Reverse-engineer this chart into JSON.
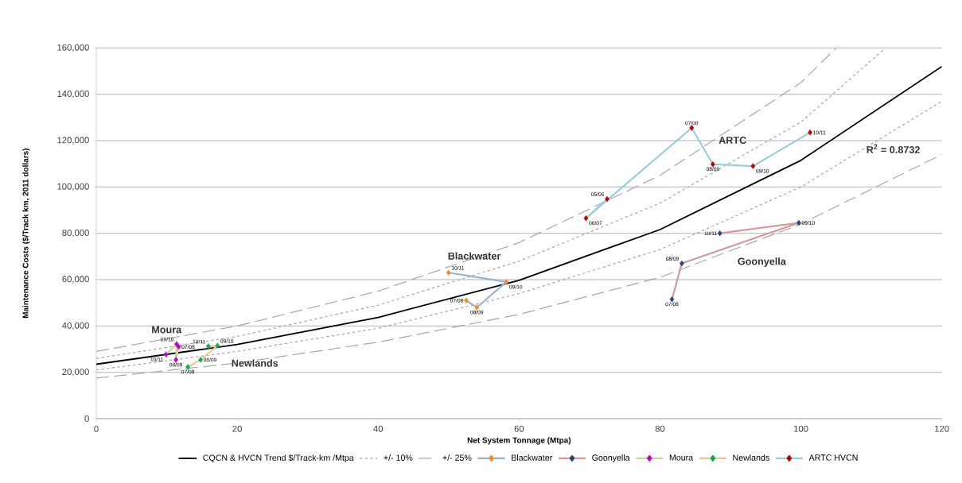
{
  "chart_data": {
    "type": "line",
    "xlabel": "Net System Tonnage (Mtpa)",
    "ylabel": "Maintenance Costs ($/Track km, 2011 dollars)",
    "xlim": [
      0,
      120
    ],
    "ylim": [
      0,
      160000
    ],
    "xticks": [
      0,
      20,
      40,
      60,
      80,
      100,
      120
    ],
    "yticks": [
      0,
      {
        "value": 20000,
        "label": "20,000"
      },
      {
        "value": 40000,
        "label": "40,000"
      },
      {
        "value": 60000,
        "label": "60,000"
      },
      {
        "value": 80000,
        "label": "80,000"
      },
      {
        "value": 100000,
        "label": "100,000"
      },
      {
        "value": 120000,
        "label": "120,000"
      },
      {
        "value": 140000,
        "label": "140,000"
      },
      {
        "value": 160000,
        "label": "160,000"
      }
    ],
    "grid": "y",
    "legend": "bottom",
    "series": [
      {
        "name": "CQCN & HVCN Trend $/Track-km /Mtpa",
        "color": "#000000",
        "line_style": "solid",
        "marker": "none",
        "x": [
          0,
          20,
          40,
          60,
          80,
          100,
          120
        ],
        "values": [
          23500,
          32000,
          43700,
          59700,
          81600,
          111500,
          152000
        ]
      },
      {
        "name": "+/- 10%",
        "color": "#a6a6a6",
        "line_style": "dotted",
        "marker": "none",
        "x": [
          0,
          20,
          40,
          60,
          80,
          100,
          112
        ],
        "values": [
          26000,
          35500,
          49000,
          68000,
          93000,
          128000,
          160000
        ]
      },
      {
        "color": "#a6a6a6",
        "line_style": "dotted",
        "marker": "none",
        "x": [
          0,
          20,
          40,
          60,
          80,
          100,
          120
        ],
        "values": [
          21000,
          29000,
          39000,
          54000,
          73000,
          100000,
          137000
        ]
      },
      {
        "name": "+/- 25%",
        "color": "#a6a6a6",
        "line_style": "dashed",
        "marker": "none",
        "x": [
          0,
          20,
          40,
          60,
          80,
          100,
          105
        ],
        "values": [
          29000,
          40000,
          55000,
          76000,
          105000,
          145000,
          160000
        ]
      },
      {
        "color": "#a6a6a6",
        "line_style": "dashed",
        "marker": "none",
        "x": [
          0,
          20,
          40,
          60,
          80,
          100,
          120
        ],
        "values": [
          17500,
          24000,
          33000,
          45000,
          61000,
          84000,
          114000
        ]
      },
      {
        "name": "Blackwater",
        "color": "#95b3d7",
        "colors": [
          "#f68b1f",
          "#f68b1f",
          "#f68b1f",
          "#f68b1f"
        ],
        "line_style": "solid",
        "marker": "diamond",
        "x": [
          52.5,
          54,
          58.2,
          50
        ],
        "values": [
          51000,
          48000,
          59000,
          63000
        ]
      },
      {
        "name": "Goonyella",
        "color": "#d99694",
        "colors": [
          "#1f497d",
          "#1f497d",
          "#1f497d",
          "#1f497d"
        ],
        "line_style": "solid",
        "marker": "diamond",
        "x": [
          81.7,
          83.1,
          99.7,
          88.5
        ],
        "values": [
          51500,
          67000,
          84500,
          80000
        ]
      },
      {
        "name": "Moura",
        "color": "#c3d69b",
        "colors": [
          "#cc00cc",
          "#cc00cc",
          "#cc00cc",
          "#cc00cc"
        ],
        "line_style": "solid",
        "marker": "diamond",
        "x": [
          11.7,
          11.3,
          11.4,
          9.9
        ],
        "values": [
          31000,
          25400,
          32200,
          27700
        ]
      },
      {
        "name": "Newlands",
        "color": "#fac090",
        "colors": [
          "#00b050",
          "#00b050",
          "#00b050",
          "#00b050"
        ],
        "line_style": "solid",
        "marker": "diamond",
        "x": [
          13.0,
          14.8,
          17.2,
          15.9
        ],
        "values": [
          22300,
          25400,
          31500,
          31200
        ]
      },
      {
        "name": "ARTC HVCN",
        "color": "#93cddd",
        "colors": [
          "#c00000",
          "#c00000",
          "#c00000",
          "#c00000",
          "#c00000",
          "#c00000"
        ],
        "line_style": "solid",
        "marker": "diamond",
        "x": [
          72.5,
          69.5,
          84.5,
          87.5,
          93.2,
          101.3
        ],
        "values": [
          94800,
          86500,
          125500,
          109800,
          109000,
          123500
        ]
      }
    ],
    "annotations": [
      "ARTC",
      "Goonyella",
      "Blackwater",
      "Moura",
      "Newlands",
      "R$^{2}$ = 0.8732",
      {
        "text": "07/08",
        "x": 52.5,
        "y": 51000
      },
      {
        "text": "08/09",
        "x": 54,
        "y": 48000
      },
      {
        "text": "09/10",
        "x": 58.2,
        "y": 59000
      },
      {
        "text": "10/11",
        "x": 50,
        "y": 63000
      },
      {
        "text": "07/08",
        "x": 81.7,
        "y": 51500
      },
      {
        "text": "08/09",
        "x": 83.1,
        "y": 67000
      },
      {
        "text": "09/10",
        "x": 99.7,
        "y": 84500
      },
      {
        "text": "10/11",
        "x": 88.5,
        "y": 80000
      },
      {
        "text": "07/08",
        "x": 11.7,
        "y": 31000
      },
      {
        "text": "08/09",
        "x": 11.3,
        "y": 25400
      },
      {
        "text": "09/10",
        "x": 11.4,
        "y": 32200
      },
      {
        "text": "10/11",
        "x": 9.9,
        "y": 27700
      },
      {
        "text": "07/08",
        "x": 13.0,
        "y": 22300
      },
      {
        "text": "08/09",
        "x": 14.8,
        "y": 25400
      },
      {
        "text": "09/10",
        "x": 17.2,
        "y": 31500
      },
      {
        "text": "10/11",
        "x": 15.9,
        "y": 31200
      },
      {
        "text": "05/06",
        "x": 72.5,
        "y": 94800
      },
      {
        "text": "06/07",
        "x": 69.5,
        "y": 86500
      },
      {
        "text": "07/08",
        "x": 84.5,
        "y": 125500
      },
      {
        "text": "08/09",
        "x": 87.5,
        "y": 109800
      },
      {
        "text": "09/10",
        "x": 93.2,
        "y": 109000
      },
      {
        "text": "10/11",
        "x": 101.3,
        "y": 123500
      }
    ]
  }
}
